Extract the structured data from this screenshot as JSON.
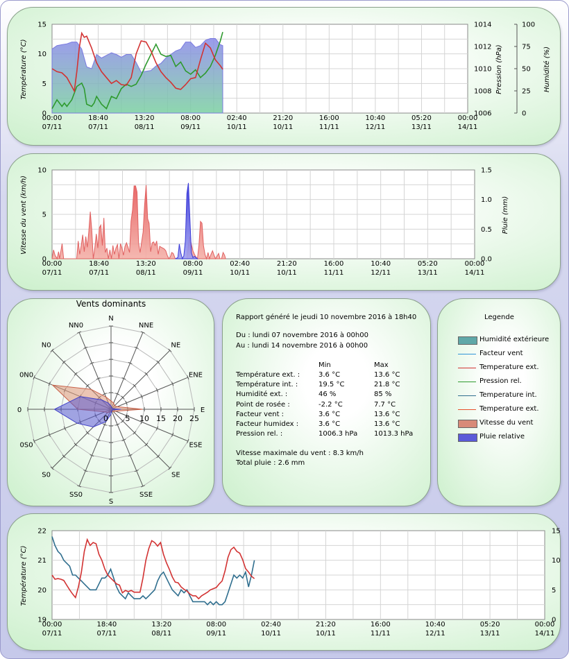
{
  "colors": {
    "temp_ext": "#d23232",
    "temp_int": "#2f6e8e",
    "pression": "#2e9a2e",
    "humidite": "#7a7ae0",
    "vent": "#e86464",
    "pluie": "#3a3ad8",
    "facteur_vent": "#2f94d8"
  },
  "time_axis": {
    "times": [
      "00:00",
      "18:40",
      "13:20",
      "08:00",
      "02:40",
      "21:20",
      "16:00",
      "10:40",
      "05:20",
      "00:00"
    ],
    "dates": [
      "07/11",
      "07/11",
      "08/11",
      "09/11",
      "10/11",
      "10/11",
      "11/11",
      "12/11",
      "13/11",
      "14/11"
    ]
  },
  "chart_data": [
    {
      "type": "line",
      "id": "temperature",
      "ylabel": "Température (°C)",
      "ylim": [
        0,
        15
      ],
      "yticks": [
        0,
        5,
        10,
        15
      ],
      "y2label": "Pression (hPa)",
      "y2lim": [
        1006,
        1014
      ],
      "y2ticks": [
        1006,
        1008,
        1010,
        1012,
        1014
      ],
      "y3label": "Humidité (%)",
      "y3lim": [
        0,
        100
      ],
      "y3ticks": [
        0,
        25,
        50,
        75,
        100
      ],
      "x_unit": "hours since 07/11 00:00",
      "x_range": [
        0,
        168
      ],
      "series": [
        {
          "name": "Temperature ext.",
          "axis": "y",
          "x": [
            0,
            2,
            4,
            6,
            8,
            9,
            10,
            11,
            12,
            13,
            14,
            16,
            18,
            20,
            22,
            24,
            26,
            28,
            30,
            32,
            34,
            36,
            38,
            40,
            42,
            44,
            46,
            48,
            50,
            52,
            54,
            56,
            58,
            60,
            62,
            64,
            66,
            68,
            69
          ],
          "values": [
            7.5,
            7,
            6.8,
            6,
            4.5,
            3.7,
            7,
            11,
            13.5,
            12.8,
            13,
            11,
            8.5,
            7,
            6,
            5,
            5.5,
            4.8,
            4.7,
            6,
            10,
            12.2,
            12,
            10.5,
            8.5,
            7,
            6,
            5.2,
            4.2,
            4,
            4.8,
            5.8,
            6,
            9,
            11.8,
            11,
            9,
            8,
            7.4
          ]
        },
        {
          "name": "Pression rel.",
          "axis": "y2",
          "x": [
            0,
            2,
            4,
            5,
            6,
            8,
            10,
            12,
            13,
            14,
            16,
            17,
            18,
            20,
            22,
            24,
            26,
            28,
            30,
            32,
            34,
            36,
            38,
            40,
            42,
            44,
            46,
            48,
            50,
            52,
            54,
            56,
            58,
            60,
            62,
            64,
            66,
            68,
            69
          ],
          "values": [
            1006.4,
            1007.2,
            1006.6,
            1006.9,
            1006.6,
            1007.2,
            1008.4,
            1008.7,
            1008.2,
            1006.8,
            1006.6,
            1006.9,
            1007.5,
            1006.8,
            1006.4,
            1007.5,
            1007.3,
            1008.2,
            1008.6,
            1008.4,
            1008.6,
            1009.4,
            1010.4,
            1011.3,
            1012.2,
            1011.3,
            1011.1,
            1011.2,
            1010.2,
            1010.6,
            1009.8,
            1009.5,
            1009.9,
            1009.2,
            1009.6,
            1010.2,
            1011.2,
            1012.5,
            1013.3
          ]
        },
        {
          "name": "Humidité extérieure",
          "axis": "y3",
          "fill": true,
          "x": [
            0,
            2,
            4,
            6,
            8,
            10,
            12,
            14,
            16,
            18,
            20,
            22,
            24,
            26,
            28,
            30,
            32,
            34,
            36,
            38,
            40,
            42,
            44,
            46,
            48,
            50,
            52,
            54,
            56,
            58,
            60,
            62,
            64,
            66,
            68,
            69
          ],
          "values": [
            72,
            76,
            77,
            78,
            80,
            80,
            72,
            52,
            50,
            66,
            62,
            65,
            68,
            66,
            63,
            66,
            66,
            57,
            46,
            47,
            48,
            53,
            56,
            62,
            66,
            70,
            72,
            80,
            80,
            74,
            76,
            82,
            84,
            84,
            77,
            76
          ]
        }
      ]
    },
    {
      "type": "area",
      "id": "vent",
      "ylabel": "Vitesse du vent (km/h)",
      "ylim": [
        0,
        10
      ],
      "yticks": [
        0,
        5,
        10
      ],
      "y2label": "Pluie (mm)",
      "y2lim": [
        0,
        1.5
      ],
      "y2ticks": [
        0.0,
        0.5,
        1.0,
        1.5
      ],
      "x_unit": "hours since 07/11 00:00",
      "x_range": [
        0,
        168
      ],
      "series": [
        {
          "name": "Vitesse du vent",
          "axis": "y",
          "x": [
            0,
            0.6,
            1.2,
            2,
            2.6,
            3,
            4,
            4.6,
            5.2,
            5.8,
            6.2,
            7,
            8,
            9.8,
            10.4,
            11,
            11.6,
            12.2,
            12.8,
            13.4,
            14,
            14.6,
            15.2,
            15.8,
            16.4,
            17,
            17.6,
            18.2,
            18.8,
            19.4,
            20,
            20.6,
            21.2,
            21.8,
            22.4,
            23,
            23.6,
            24.2,
            24.8,
            25.4,
            26,
            26.6,
            27.2,
            27.8,
            28.4,
            29,
            29.6,
            30.2,
            30.8,
            31.4,
            32,
            32.6,
            33.2,
            33.8,
            34.4,
            35,
            35.6,
            36.2,
            36.8,
            37.4,
            38,
            38.6,
            39.2,
            39.8,
            40.4,
            41,
            41.6,
            42.2,
            42.8,
            43.4,
            44,
            44.6,
            45.2,
            45.8,
            46.4,
            47,
            47.6,
            48.2,
            49,
            49.8,
            50,
            51.8,
            52.4,
            53,
            53.6,
            54.2,
            54.8,
            55.4,
            56,
            56.6,
            57.2,
            57.8,
            58.4,
            59,
            59.6,
            60.2,
            60.8,
            61.4,
            62,
            62.6,
            63.2,
            63.8,
            64.4,
            65,
            65.6,
            66.2,
            66.8,
            67.4,
            68,
            68.6,
            69
          ],
          "values": [
            0,
            1,
            0.4,
            0,
            0.8,
            0,
            1.7,
            0,
            0,
            0,
            0,
            0,
            0,
            0,
            2,
            0.5,
            1.5,
            2.7,
            0.8,
            2.5,
            1.3,
            3,
            5.3,
            3.2,
            0,
            1.2,
            2.8,
            1.2,
            3.5,
            3.8,
            1.5,
            4.6,
            0.7,
            1.2,
            0,
            1,
            0,
            1.5,
            0.5,
            1.2,
            1.6,
            0,
            1.7,
            1.2,
            0.4,
            1.4,
            1.8,
            1.3,
            0.7,
            4.2,
            5.5,
            8.2,
            8.2,
            7.5,
            1.8,
            0.7,
            1.9,
            3,
            6.1,
            8.3,
            4.5,
            4,
            0.8,
            1.8,
            1.9,
            1.5,
            2,
            0.5,
            1.4,
            1.3,
            1.2,
            1.1,
            0.9,
            0.4,
            0,
            0.2,
            0.7,
            0.6,
            0,
            0,
            0,
            0,
            0,
            0,
            0,
            1.5,
            2.5,
            1.6,
            0.9,
            0.5,
            0.2,
            0,
            1.5,
            4.2,
            4,
            1.5,
            0.5,
            0,
            0.7,
            0,
            0.5,
            0.9,
            0.4,
            0,
            0.3,
            0.6,
            0,
            0,
            0.7,
            0.4,
            0
          ]
        },
        {
          "name": "Pluie relative",
          "axis": "y2",
          "x": [
            49,
            50,
            50.6,
            51.2,
            51.8,
            52.4,
            53,
            53.6,
            54.2,
            54.8,
            55.4,
            56,
            56.6,
            57.2,
            57.8
          ],
          "values": [
            0,
            0.02,
            0.25,
            0.1,
            0,
            0.05,
            0.3,
            1.1,
            1.28,
            0.7,
            0.1,
            0.02,
            0.04,
            0.02,
            0
          ]
        }
      ]
    },
    {
      "type": "radar",
      "id": "vents_dominants",
      "title": "Vents dominants",
      "directions": [
        "N",
        "NNE",
        "NE",
        "ENE",
        "E",
        "ESE",
        "SE",
        "SSE",
        "S",
        "SS0",
        "S0",
        "0S0",
        "0",
        "0N0",
        "N0",
        "NN0"
      ],
      "rlim": [
        0,
        25
      ],
      "rticks": [
        5,
        10,
        15,
        20,
        25
      ],
      "series": [
        {
          "name": "Vitesse du vent",
          "values": [
            2.5,
            2,
            1.5,
            2,
            9.5,
            1.5,
            1,
            0.6,
            0.6,
            0.8,
            1.5,
            2,
            10,
            19,
            8.5,
            4
          ]
        },
        {
          "name": "Pluie relative",
          "values": [
            1,
            0.5,
            0.5,
            0.5,
            3,
            0.5,
            0.5,
            0.5,
            1.5,
            4,
            7.5,
            11,
            17,
            10,
            4,
            2
          ]
        }
      ]
    },
    {
      "type": "line",
      "id": "temp_interieure",
      "ylabel": "Température (°C)",
      "ylim": [
        19,
        22
      ],
      "yticks": [
        19,
        20,
        21,
        22
      ],
      "y2lim": [
        0,
        15
      ],
      "y2ticks": [
        0,
        5,
        10,
        15
      ],
      "x_unit": "hours since 07/11 00:00",
      "x_range": [
        0,
        168
      ],
      "series": [
        {
          "name": "Temperature int.",
          "axis": "y",
          "x": [
            0,
            1,
            2,
            3,
            4,
            5,
            6,
            7,
            8,
            9,
            10,
            11,
            12,
            13,
            14,
            15,
            16,
            17,
            18,
            19,
            20,
            21,
            22,
            23,
            24,
            25,
            26,
            27,
            28,
            29,
            30,
            31,
            32,
            33,
            34,
            35,
            36,
            37,
            38,
            39,
            40,
            41,
            42,
            43,
            44,
            45,
            46,
            47,
            48,
            49,
            50,
            51,
            52,
            53,
            54,
            55,
            56,
            57,
            58,
            59,
            60,
            61,
            62,
            63,
            64,
            65,
            66,
            67,
            68,
            69
          ],
          "values": [
            21.8,
            21.5,
            21.3,
            21.2,
            21,
            20.9,
            20.8,
            20.5,
            20.5,
            20.4,
            20.3,
            20.2,
            20.1,
            20,
            20,
            20,
            20.2,
            20.4,
            20.4,
            20.5,
            20.7,
            20.4,
            20.1,
            19.9,
            19.8,
            19.7,
            19.9,
            19.8,
            19.7,
            19.7,
            19.7,
            19.8,
            19.7,
            19.8,
            19.9,
            20,
            20.3,
            20.5,
            20.6,
            20.4,
            20.2,
            20,
            19.9,
            19.8,
            20,
            19.9,
            20,
            19.8,
            19.6,
            19.6,
            19.6,
            19.6,
            19.6,
            19.5,
            19.6,
            19.5,
            19.6,
            19.5,
            19.5,
            19.6,
            19.9,
            20.2,
            20.5,
            20.4,
            20.5,
            20.4,
            20.6,
            20.1,
            20.5,
            21
          ]
        },
        {
          "name": "Temperature ext.",
          "axis": "y2",
          "x": [
            0,
            1,
            2,
            3,
            4,
            5,
            6,
            7,
            8,
            9,
            10,
            11,
            12,
            13,
            14,
            15,
            16,
            17,
            18,
            19,
            20,
            21,
            22,
            23,
            24,
            25,
            26,
            27,
            28,
            29,
            30,
            31,
            32,
            33,
            34,
            35,
            36,
            37,
            38,
            39,
            40,
            41,
            42,
            43,
            44,
            45,
            46,
            47,
            48,
            49,
            50,
            51,
            52,
            53,
            54,
            55,
            56,
            57,
            58,
            59,
            60,
            61,
            62,
            63,
            64,
            65,
            66,
            67,
            68,
            69
          ],
          "values": [
            7.5,
            6.8,
            6.9,
            6.8,
            6.6,
            5.8,
            5,
            4.3,
            3.7,
            5.5,
            8,
            11.5,
            13.5,
            12.5,
            13,
            12.8,
            11,
            10,
            8.5,
            7.5,
            7,
            6.5,
            6,
            5.8,
            4.5,
            4.9,
            4.7,
            4.9,
            4.6,
            4.6,
            4.6,
            7,
            10,
            12,
            13.3,
            13,
            12.4,
            13,
            11,
            9.6,
            8.5,
            7.2,
            6.3,
            6.2,
            5.5,
            5.1,
            4.8,
            4.3,
            4,
            4,
            3.5,
            4,
            4.3,
            4.6,
            5,
            5.2,
            5.4,
            6,
            6.5,
            8.2,
            10.5,
            11.8,
            12.2,
            11.5,
            11.2,
            10.1,
            8.6,
            8,
            7.3,
            6.9
          ]
        }
      ]
    }
  ],
  "rapport": {
    "generated": "Rapport généré le jeudi 10 novembre 2016 à 18h40",
    "du": "Du : lundi 07 novembre 2016 à 00h00",
    "au": "Au : lundi 14 novembre 2016 à 00h00",
    "col_min": "Min",
    "col_max": "Max",
    "rows": [
      {
        "label": "Température ext. :",
        "min": "3.6 °C",
        "max": "13.6 °C"
      },
      {
        "label": "Température int. :",
        "min": "19.5 °C",
        "max": "21.8 °C"
      },
      {
        "label": "Humidité ext. :",
        "min": "46 %",
        "max": "85 %"
      },
      {
        "label": "Point de rosée :",
        "min": "-2.2 °C",
        "max": " 7.7 °C"
      },
      {
        "label": "Facteur vent :",
        "min": "3.6 °C",
        "max": "13.6 °C"
      },
      {
        "label": "Facteur humidex :",
        "min": "3.6 °C",
        "max": "13.6 °C"
      },
      {
        "label": "Pression rel. :",
        "min": "1006.3 hPa",
        "max": "1013.3 hPa"
      }
    ],
    "vent_max": "Vitesse maximale du vent : 8.3 km/h",
    "pluie_totale": "Total pluie : 2.6 mm"
  },
  "legende": {
    "title": "Legende",
    "items": [
      {
        "label": "Humidité extérieure",
        "kind": "box",
        "color": "#5fa8a8"
      },
      {
        "label": "Facteur vent",
        "kind": "line",
        "color": "#2f94d8"
      },
      {
        "label": "Temperature ext.",
        "kind": "line",
        "color": "#d23232"
      },
      {
        "label": "Pression rel.",
        "kind": "line",
        "color": "#2e9a2e"
      },
      {
        "label": "Temperature int.",
        "kind": "line",
        "color": "#2f6e8e"
      },
      {
        "label": "Temperature ext.",
        "kind": "line",
        "color": "#e8502a"
      },
      {
        "label": "Vitesse du vent",
        "kind": "box",
        "color": "#d88a78"
      },
      {
        "label": "Pluie relative",
        "kind": "box",
        "color": "#5a5ad8"
      }
    ]
  }
}
